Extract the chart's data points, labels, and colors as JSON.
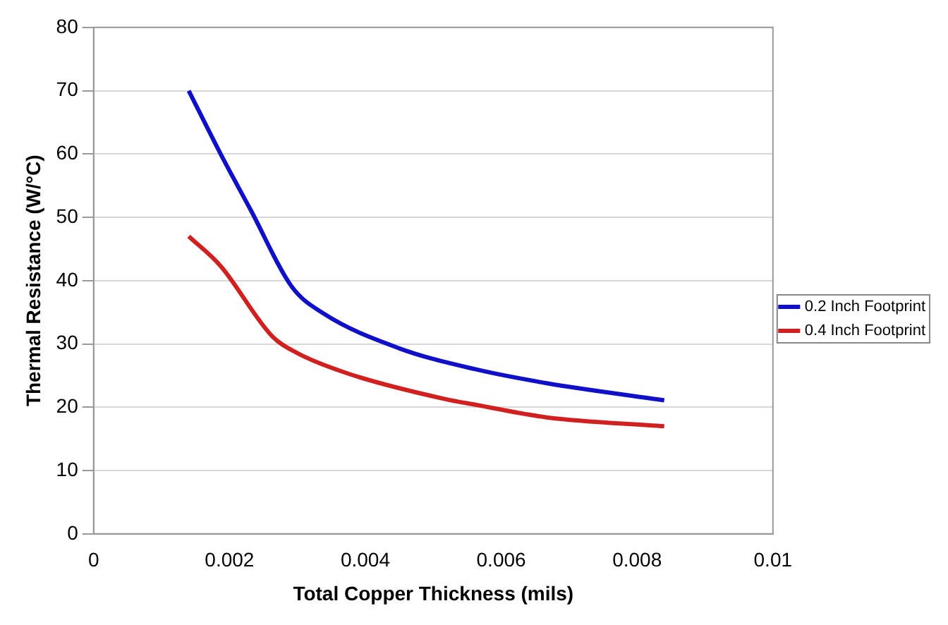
{
  "chart_data": {
    "type": "line",
    "xlabel": "Total Copper Thickness (mils)",
    "ylabel": "Thermal Resistance (W/°C)",
    "xlim": [
      0,
      0.01
    ],
    "xticks": [
      0,
      0.002,
      0.004,
      0.006,
      0.008,
      0.01
    ],
    "ylim": [
      0,
      80
    ],
    "yticks": [
      0,
      10,
      20,
      30,
      40,
      50,
      60,
      70,
      80
    ],
    "grid": "y",
    "legend": "right",
    "marker": "none",
    "line_style": "solid",
    "series": [
      {
        "name": "0.2 Inch Footprint",
        "color": "#1010c8",
        "x": [
          0.0014,
          0.00187,
          0.00231,
          0.00292,
          0.00337,
          0.0045,
          0.00562,
          0.00667,
          0.0084
        ],
        "values": [
          70,
          60,
          51.2,
          39,
          34.9,
          29.3,
          26,
          23.8,
          21.1
        ]
      },
      {
        "name": "0.4 Inch Footprint",
        "color": "#d02020",
        "x": [
          0.0014,
          0.00187,
          0.00263,
          0.00299,
          0.00375,
          0.00517,
          0.00562,
          0.00667,
          0.0084
        ],
        "values": [
          47,
          42.3,
          31.2,
          28.6,
          25.3,
          21.3,
          20.4,
          18.4,
          17
        ]
      }
    ]
  }
}
